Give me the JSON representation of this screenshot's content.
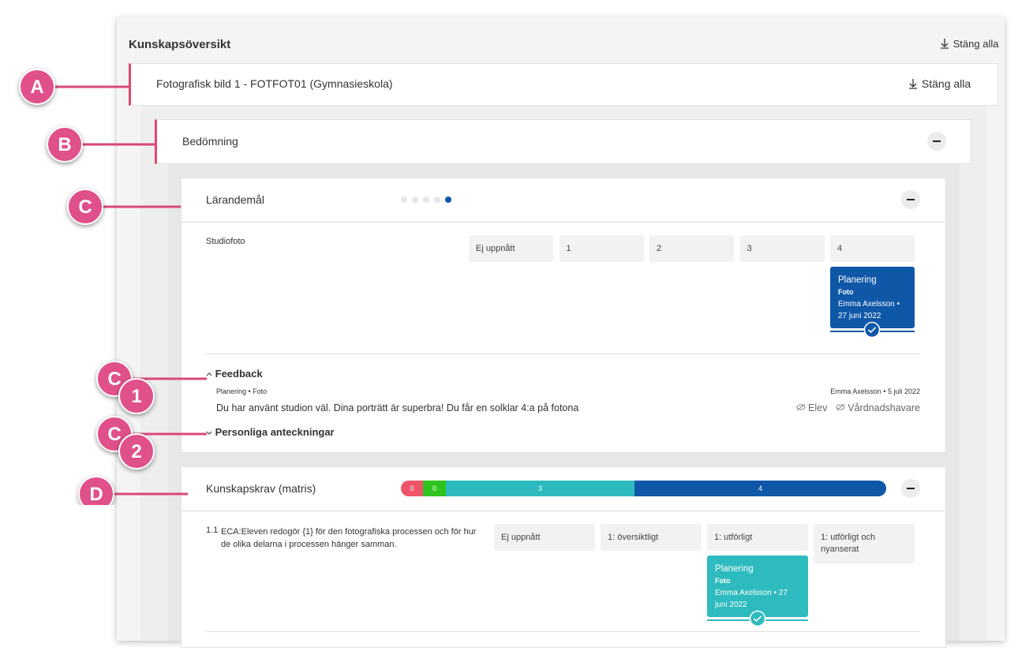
{
  "header": {
    "title": "Kunskapsöversikt",
    "close_all": "Stäng alla"
  },
  "course": {
    "title": "Fotografisk bild 1 - FOTFOT01 (Gymnasieskola)",
    "close_all": "Stäng alla"
  },
  "assessment": {
    "title": "Bedömning"
  },
  "learning_goals": {
    "title": "Lärandemål",
    "criterion": "Studiofoto",
    "grades": [
      "Ej uppnått",
      "1",
      "2",
      "3",
      "4"
    ],
    "assessment_card": {
      "title": "Planering",
      "subtitle": "Foto",
      "meta": "Emma Axelsson • 27 juni 2022"
    },
    "feedback": {
      "title": "Feedback",
      "source": "Planering • Foto",
      "meta": "Emma Axelsson • 5 juli 2022",
      "text": "Du har använt studion väl. Dina porträtt är superbra! Du får en solklar 4:a på fotona",
      "visibility": [
        "Elev",
        "Vårdnadshavare"
      ]
    },
    "notes": {
      "title": "Personliga anteckningar"
    }
  },
  "requirements": {
    "title": "Kunskapskrav (matris)",
    "distribution": [
      0,
      0,
      3,
      4
    ],
    "rows": [
      {
        "number": "1.1",
        "text": "ECA:Eleven redogör {1} för den fotografiska processen och för hur de olika delarna i processen hänger samman.",
        "levels": [
          "Ej uppnått",
          "1: översiktligt",
          "1: utförligt",
          "1: utförligt och nyanserat"
        ],
        "assessment_card": {
          "title": "Planering",
          "subtitle": "Foto",
          "meta": "Emma Axelsson • 27 juni 2022"
        }
      }
    ]
  },
  "annotations": [
    {
      "letter": "A"
    },
    {
      "letter": "B"
    },
    {
      "letter": "C"
    },
    {
      "letter": "C",
      "number": "1"
    },
    {
      "letter": "C",
      "number": "2"
    },
    {
      "letter": "D"
    }
  ]
}
